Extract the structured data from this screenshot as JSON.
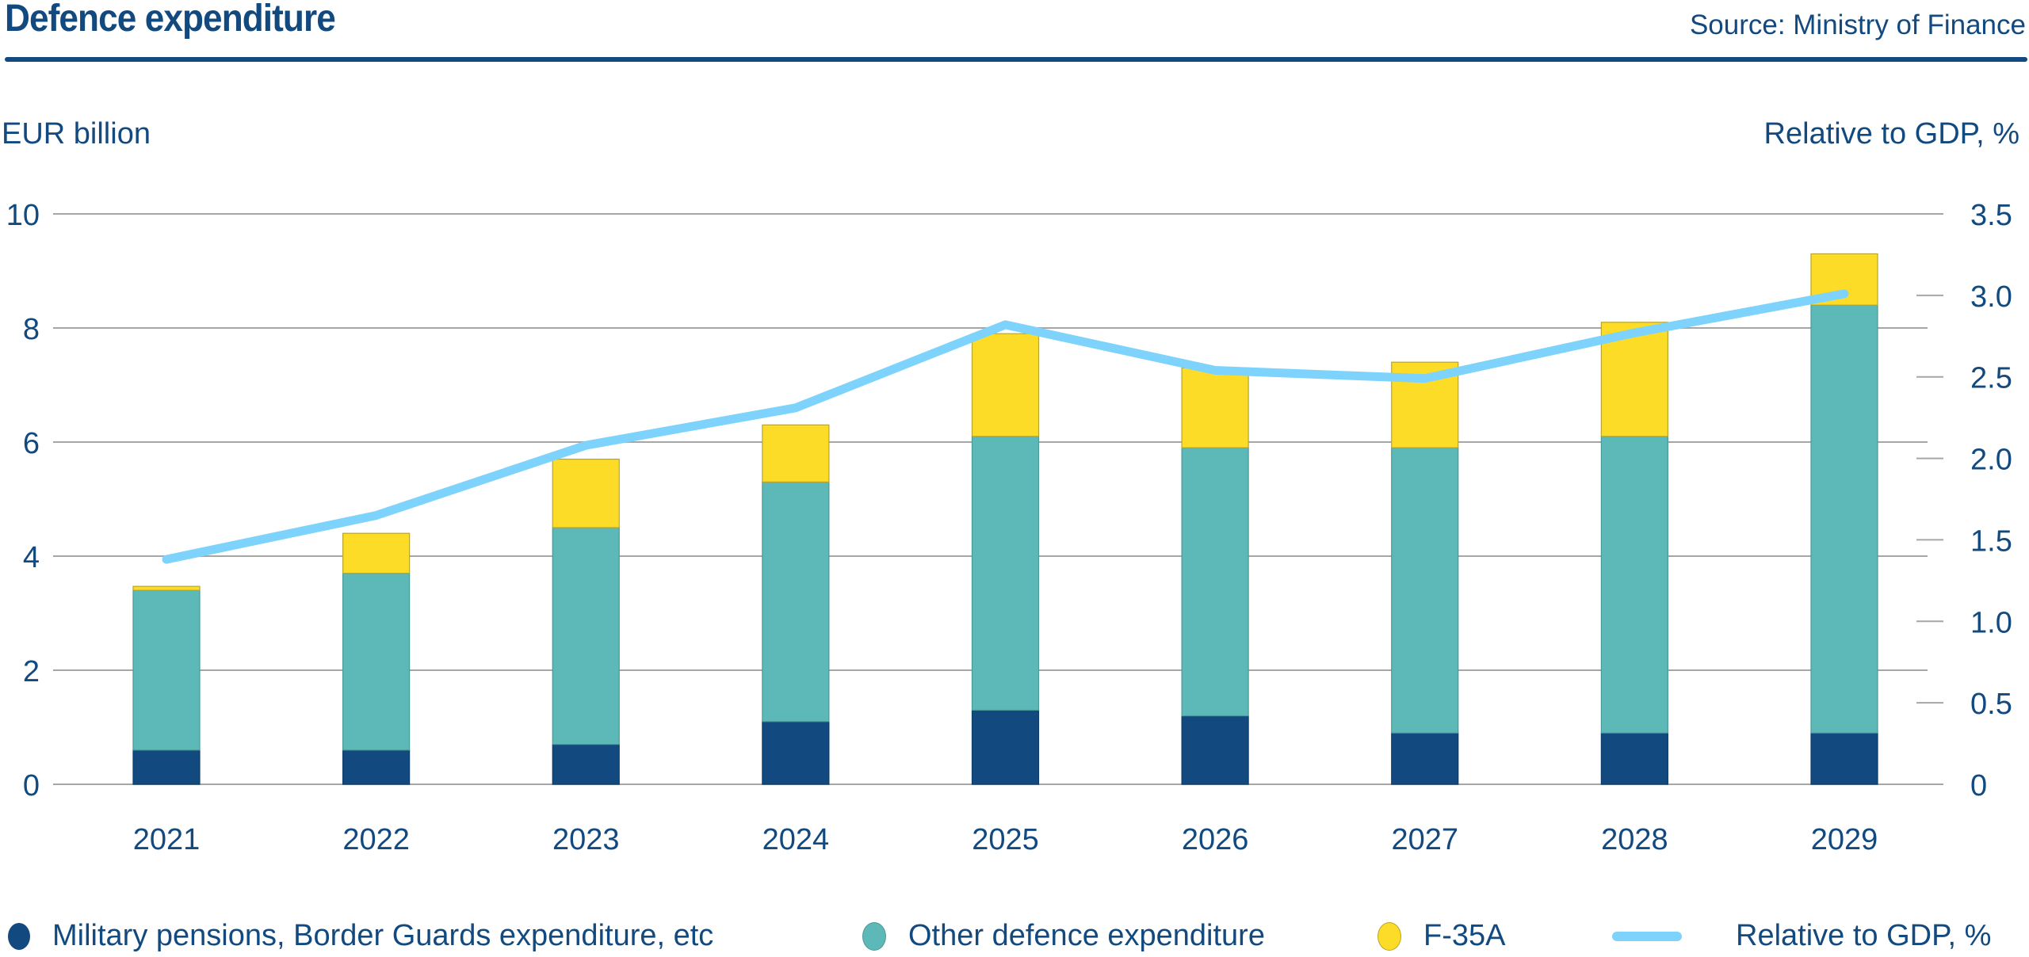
{
  "header": {
    "title": "Defence expenditure",
    "source": "Source: Ministry of Finance"
  },
  "colors": {
    "military": "#124a80",
    "other": "#5db9b7",
    "f35": "#fddc27",
    "line": "#7dd3fc",
    "grid": "#a6a6a6",
    "text": "#124a80"
  },
  "chart_data": {
    "type": "bar",
    "subtype": "stacked bar with line on secondary axis",
    "title": "Defence expenditure",
    "source": "Source: Ministry of Finance",
    "categories": [
      "2021",
      "2022",
      "2023",
      "2024",
      "2025",
      "2026",
      "2027",
      "2028",
      "2029"
    ],
    "series": [
      {
        "name": "Military pensions, Border Guards expenditure, etc",
        "type": "bar",
        "axis": "left",
        "values": [
          0.6,
          0.6,
          0.7,
          1.1,
          1.3,
          1.2,
          0.9,
          0.9,
          0.9
        ]
      },
      {
        "name": "Other defence expenditure",
        "type": "bar",
        "axis": "left",
        "values": [
          2.8,
          3.1,
          3.8,
          4.2,
          4.8,
          4.7,
          5.0,
          5.2,
          7.5
        ]
      },
      {
        "name": "F-35A",
        "type": "bar",
        "axis": "left",
        "values": [
          0.07,
          0.7,
          1.2,
          1.0,
          1.8,
          1.4,
          1.5,
          2.0,
          0.9
        ]
      },
      {
        "name": "Relative to GDP, %",
        "type": "line",
        "axis": "right",
        "values": [
          1.38,
          1.65,
          2.08,
          2.31,
          2.82,
          2.54,
          2.49,
          2.77,
          3.01
        ]
      }
    ],
    "ylabel": "EUR billion",
    "y2label": "Relative to GDP, %",
    "ylim": [
      0,
      10
    ],
    "y2lim": [
      0,
      3.5
    ],
    "yticks": [
      "0",
      "2",
      "4",
      "6",
      "8",
      "10"
    ],
    "y2ticks": [
      "0",
      "0.5",
      "1.0",
      "1.5",
      "2.0",
      "2.5",
      "3.0",
      "3.5"
    ],
    "grid": true,
    "legend_position": "bottom"
  },
  "legend": [
    {
      "label": "Military pensions, Border Guards expenditure, etc",
      "kind": "dot",
      "color": "#124a80"
    },
    {
      "label": "Other defence expenditure",
      "kind": "dot",
      "color": "#5db9b7"
    },
    {
      "label": "F-35A",
      "kind": "dot",
      "color": "#fddc27"
    },
    {
      "label": "Relative to GDP, %",
      "kind": "line",
      "color": "#7dd3fc"
    }
  ]
}
